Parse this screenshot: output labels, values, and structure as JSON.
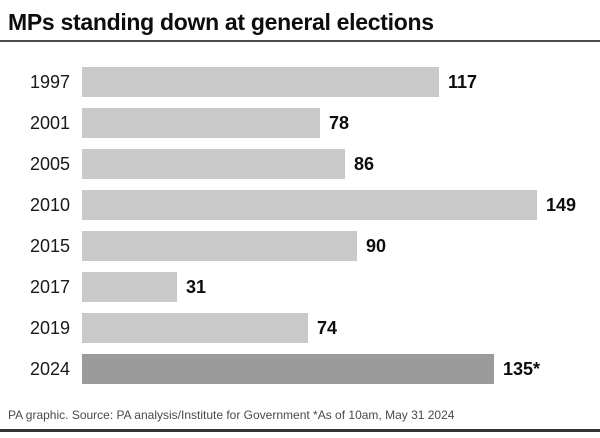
{
  "title": "MPs standing down at general elections",
  "footer": "PA graphic. Source: PA analysis/Institute for Government *As of 10am, May 31 2024",
  "colors": {
    "bar": "#c9c9c9",
    "bar_highlight": "#9b9b9b",
    "title_rule": "#4b4b4b",
    "bottom_rule": "#333333",
    "text": "#0d0d0d",
    "footer_text": "#4a4a4a"
  },
  "chart_data": {
    "type": "bar",
    "orientation": "horizontal",
    "title": "MPs standing down at general elections",
    "categories": [
      "1997",
      "2001",
      "2005",
      "2010",
      "2015",
      "2017",
      "2019",
      "2024"
    ],
    "values": [
      117,
      78,
      86,
      149,
      90,
      31,
      74,
      135
    ],
    "value_labels": [
      "117",
      "78",
      "86",
      "149",
      "90",
      "31",
      "74",
      "135*"
    ],
    "highlighted_category": "2024",
    "xlim": [
      0,
      149
    ],
    "grid": false,
    "legend": false
  }
}
